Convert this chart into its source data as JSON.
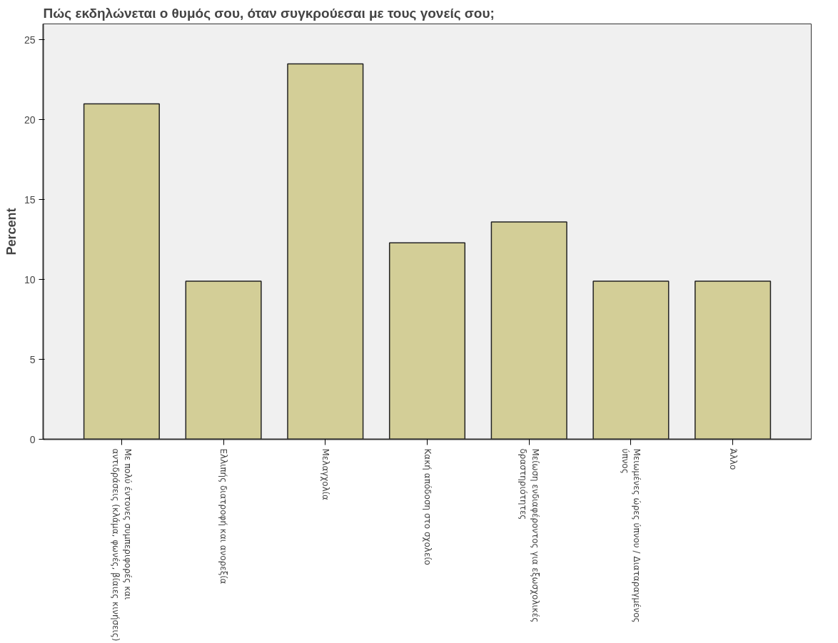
{
  "chart_data": {
    "type": "bar",
    "title": "Πώς εκδηλώνεται ο θυμός σου, όταν συγκρούεσαι με τους γονείς σου;",
    "ylabel": "Percent",
    "categories": [
      "Με πολύ έντονες συμπεριφορές και\nαντιδράσεις (κλάμα, φωνές, βίαιες κινήσεις)",
      "Ελλιπής διατροφή και ανορεξία",
      "Μελαγχολία",
      "Κακή απόδοση στο σχολείο",
      "Μείωση ενδιαφέροντος για εξωσχολικές\nδραστηριότητες",
      "Μειωμένες ώρες ύπνου / Διαταραγμένος\nύπνος",
      "Άλλο"
    ],
    "values": [
      21.0,
      9.9,
      23.5,
      12.3,
      13.6,
      9.9,
      9.9
    ],
    "color": "#d3ce97",
    "ylim": [
      0,
      26
    ],
    "yticks": [
      0,
      5,
      10,
      15,
      20,
      25
    ],
    "grid": false
  }
}
